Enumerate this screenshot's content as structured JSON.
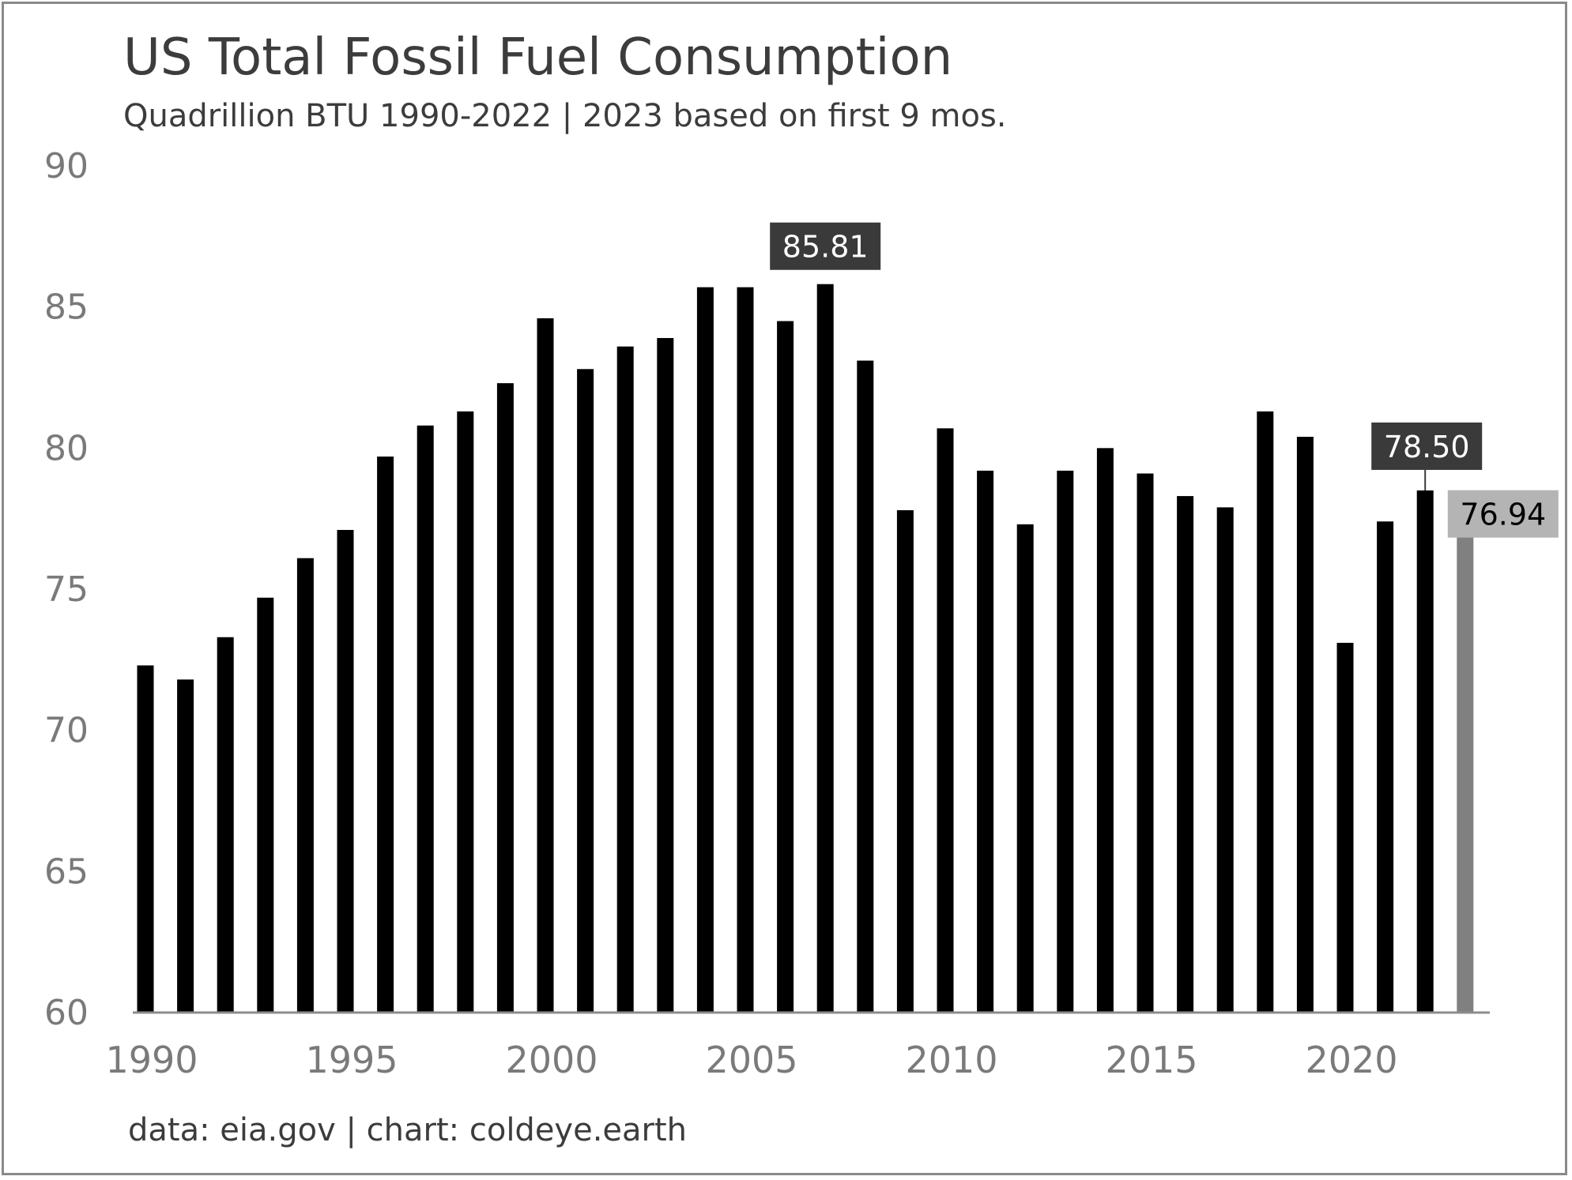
{
  "chart_data": {
    "type": "bar",
    "title": "US Total Fossil Fuel Consumption",
    "subtitle": "Quadrillion BTU 1990-2022 | 2023 based on first 9 mos.",
    "footer": "data: eia.gov | chart: coldeye.earth",
    "xlabel": "",
    "ylabel": "",
    "ylim": [
      60,
      90
    ],
    "yticks": [
      60,
      65,
      70,
      75,
      80,
      85,
      90
    ],
    "xticks": [
      1990,
      1995,
      2000,
      2005,
      2010,
      2015,
      2020
    ],
    "grid": false,
    "categories": [
      1990,
      1991,
      1992,
      1993,
      1994,
      1995,
      1996,
      1997,
      1998,
      1999,
      2000,
      2001,
      2002,
      2003,
      2004,
      2005,
      2006,
      2007,
      2008,
      2009,
      2010,
      2011,
      2012,
      2013,
      2014,
      2015,
      2016,
      2017,
      2018,
      2019,
      2020,
      2021,
      2022,
      2023
    ],
    "values": [
      72.3,
      71.8,
      73.3,
      74.7,
      76.1,
      77.1,
      79.7,
      80.8,
      81.3,
      82.3,
      84.6,
      82.8,
      83.6,
      83.9,
      85.7,
      85.7,
      84.5,
      85.81,
      83.1,
      77.8,
      80.7,
      79.2,
      77.3,
      79.2,
      80.0,
      79.1,
      78.3,
      77.9,
      81.3,
      80.4,
      73.1,
      77.4,
      78.5,
      76.94
    ],
    "bar_colors": {
      "default": "#000000",
      "estimate": "#808080"
    },
    "estimate_category": 2023,
    "annotations": [
      {
        "category": 2007,
        "label": "85.81",
        "bg": "#3a3a3a",
        "color": "#ffffff"
      },
      {
        "category": 2022,
        "label": "78.50",
        "bg": "#3a3a3a",
        "color": "#ffffff"
      },
      {
        "category": 2023,
        "label": "76.94",
        "bg": "#b4b4b4",
        "color": "#000000"
      }
    ]
  }
}
